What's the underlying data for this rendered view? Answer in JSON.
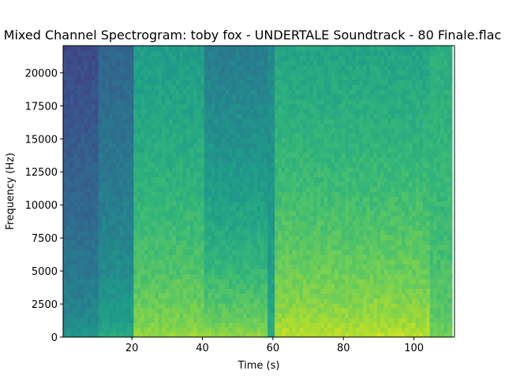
{
  "chart_data": {
    "type": "heatmap",
    "title": "Mixed Channel Spectrogram: toby fox - UNDERTALE Soundtrack - 80 Finale.flac",
    "xlabel": "Time (s)",
    "ylabel": "Frequency (Hz)",
    "xlim": [
      0.5,
      111.5
    ],
    "ylim": [
      0,
      22050
    ],
    "x_ticks": [
      20,
      40,
      60,
      80,
      100
    ],
    "y_ticks": [
      0,
      2500,
      5000,
      7500,
      10000,
      12500,
      15000,
      17500,
      20000
    ],
    "data_extent_x": [
      0.5,
      110.8
    ],
    "colormap": "viridis",
    "segments": [
      {
        "t_start": 0.5,
        "t_end": 10.5,
        "level_low": 0.55,
        "level_high": 0.22
      },
      {
        "t_start": 10.5,
        "t_end": 20.5,
        "level_low": 0.62,
        "level_high": 0.32
      },
      {
        "t_start": 20.5,
        "t_end": 40.5,
        "level_low": 0.86,
        "level_high": 0.55
      },
      {
        "t_start": 40.5,
        "t_end": 59.0,
        "level_low": 0.86,
        "level_high": 0.42
      },
      {
        "t_start": 59.0,
        "t_end": 61.0,
        "level_low": 0.62,
        "level_high": 0.48
      },
      {
        "t_start": 61.0,
        "t_end": 105.0,
        "level_low": 0.92,
        "level_high": 0.58
      },
      {
        "t_start": 105.0,
        "t_end": 110.8,
        "level_low": 0.78,
        "level_high": 0.62
      }
    ]
  }
}
